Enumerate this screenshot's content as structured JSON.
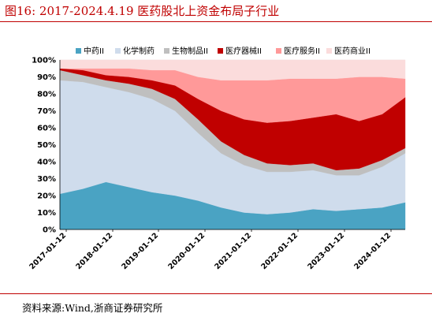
{
  "figure": {
    "title": "图16:   2017-2024.4.19 医药股北上资金布局子行业",
    "source": "资料来源:Wind,浙商证券研究所"
  },
  "chart_data": {
    "type": "area",
    "stacked": true,
    "ylim": [
      0,
      100
    ],
    "y_ticks": [
      "0%",
      "10%",
      "20%",
      "30%",
      "40%",
      "50%",
      "60%",
      "70%",
      "80%",
      "90%",
      "100%"
    ],
    "x_tick_labels": [
      "2017-01-12",
      "2018-01-12",
      "2019-01-12",
      "2020-01-12",
      "2021-01-12",
      "2022-01-12",
      "2023-01-12",
      "2024-01-12"
    ],
    "x": [
      "2017-01",
      "2017-07",
      "2018-01",
      "2018-07",
      "2019-01",
      "2019-07",
      "2020-01",
      "2020-07",
      "2021-01",
      "2021-07",
      "2022-01",
      "2022-07",
      "2023-01",
      "2023-07",
      "2024-01",
      "2024-04"
    ],
    "series": [
      {
        "name": "中药II",
        "color": "#4aa3c3",
        "values": [
          21,
          24,
          28,
          25,
          22,
          20,
          17,
          13,
          10,
          9,
          10,
          12,
          11,
          12,
          13,
          16
        ]
      },
      {
        "name": "化学制药",
        "color": "#cfdcec",
        "values": [
          67,
          63,
          56,
          56,
          55,
          50,
          40,
          32,
          28,
          25,
          24,
          23,
          21,
          20,
          24,
          29
        ]
      },
      {
        "name": "生物制品II",
        "color": "#bfbfbf",
        "values": [
          6,
          4,
          4,
          5,
          6,
          7,
          8,
          7,
          6,
          5,
          4,
          4,
          3,
          4,
          4,
          3
        ]
      },
      {
        "name": "医疗器械II",
        "color": "#c00000",
        "values": [
          1,
          3,
          3,
          4,
          5,
          8,
          12,
          18,
          21,
          24,
          26,
          27,
          33,
          28,
          27,
          30
        ]
      },
      {
        "name": "医疗服务II",
        "color": "#ff9999",
        "values": [
          0,
          1,
          4,
          5,
          6,
          9,
          13,
          18,
          23,
          25,
          25,
          23,
          21,
          26,
          22,
          11
        ]
      },
      {
        "name": "医药商业II",
        "color": "#fbdcdc",
        "values": [
          5,
          5,
          5,
          5,
          6,
          6,
          10,
          12,
          12,
          12,
          11,
          11,
          11,
          10,
          10,
          11
        ]
      }
    ]
  }
}
